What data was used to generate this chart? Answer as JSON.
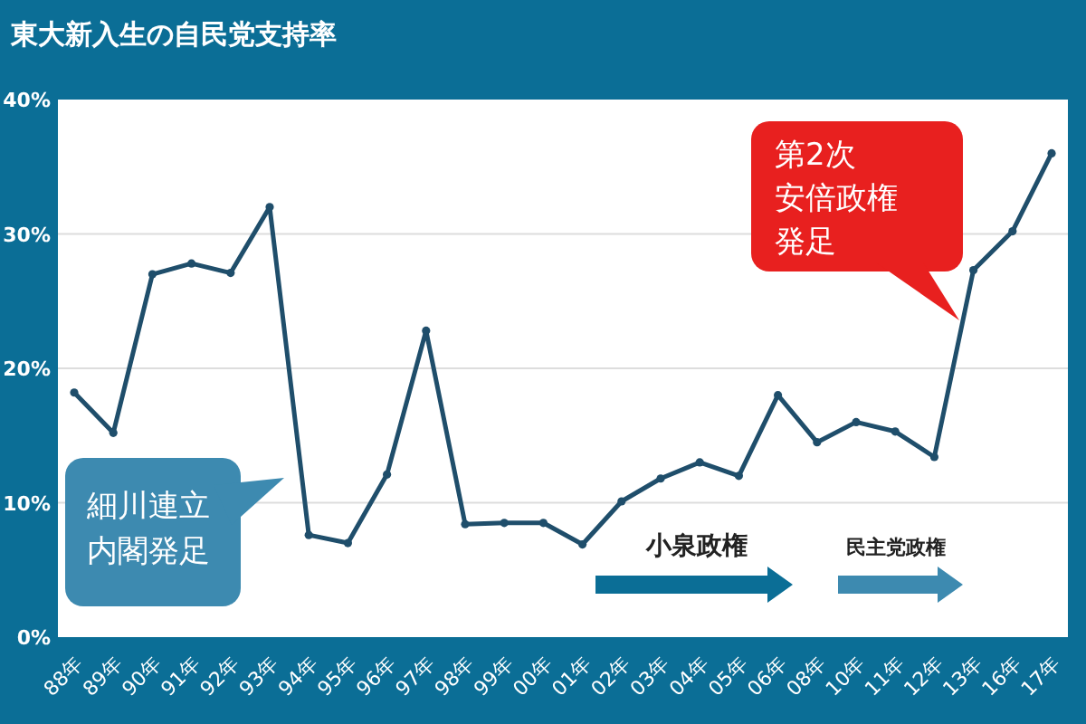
{
  "chart_data": {
    "type": "line",
    "title": "東大新入生の自民党支持率",
    "categories": [
      "88年",
      "89年",
      "90年",
      "91年",
      "92年",
      "93年",
      "94年",
      "95年",
      "96年",
      "97年",
      "98年",
      "99年",
      "00年",
      "01年",
      "02年",
      "03年",
      "04年",
      "05年",
      "06年",
      "08年",
      "10年",
      "11年",
      "12年",
      "13年",
      "16年",
      "17年"
    ],
    "series": [
      {
        "color": "#1f4e6b",
        "values": [
          18.2,
          15.2,
          27,
          27.8,
          27.1,
          32,
          7.6,
          7,
          12.1,
          22.8,
          8.4,
          8.5,
          8.5,
          6.9,
          10.1,
          11.8,
          13,
          12,
          18,
          14.5,
          16,
          15.3,
          13.4,
          27.3,
          30.2,
          36
        ]
      }
    ],
    "ylim": [
      0,
      40
    ],
    "yticks": [
      {
        "value": 0,
        "label": "0%"
      },
      {
        "value": 10,
        "label": "10%"
      },
      {
        "value": 20,
        "label": "20%"
      },
      {
        "value": 30,
        "label": "30%"
      },
      {
        "value": 40,
        "label": "40%"
      }
    ],
    "grid": "y",
    "marker": "circle",
    "line_style": "solid",
    "annotations": [
      "細川連立内閣発足",
      "第2次安倍政権発足",
      "小泉政権",
      "民主党政権"
    ]
  }
}
